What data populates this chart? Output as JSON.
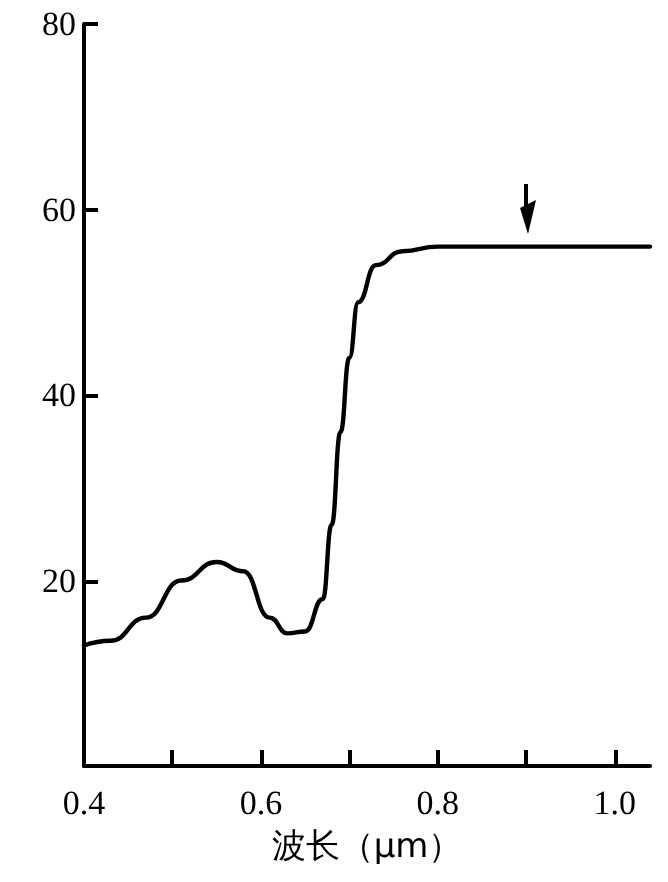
{
  "chart_data": {
    "type": "line",
    "xlabel": "波长（μm）",
    "x": [
      0.4,
      0.43,
      0.47,
      0.51,
      0.55,
      0.58,
      0.61,
      0.63,
      0.65,
      0.67,
      0.68,
      0.69,
      0.7,
      0.71,
      0.73,
      0.76,
      0.8,
      0.9,
      1.04
    ],
    "series": [
      {
        "color": "#000000",
        "values": [
          13,
          13.5,
          16,
          20,
          22,
          21,
          16,
          14.3,
          14.5,
          18,
          26,
          36,
          44,
          50,
          54,
          55.5,
          56,
          56,
          56
        ]
      }
    ],
    "xlim": [
      0.4,
      1.04
    ],
    "xticks": [
      0.4,
      {
        "value": 0.5,
        "label": null
      },
      0.6,
      {
        "value": 0.7,
        "label": null
      },
      0.8,
      {
        "value": 0.9,
        "label": null
      },
      {
        "value": 1,
        "label": "1.0"
      }
    ],
    "ylim": [
      0,
      80
    ],
    "yticks": [
      {
        "value": 0,
        "label": null
      },
      20,
      40,
      60,
      80
    ],
    "grid": false,
    "marker": "none",
    "line_style": "solid"
  }
}
